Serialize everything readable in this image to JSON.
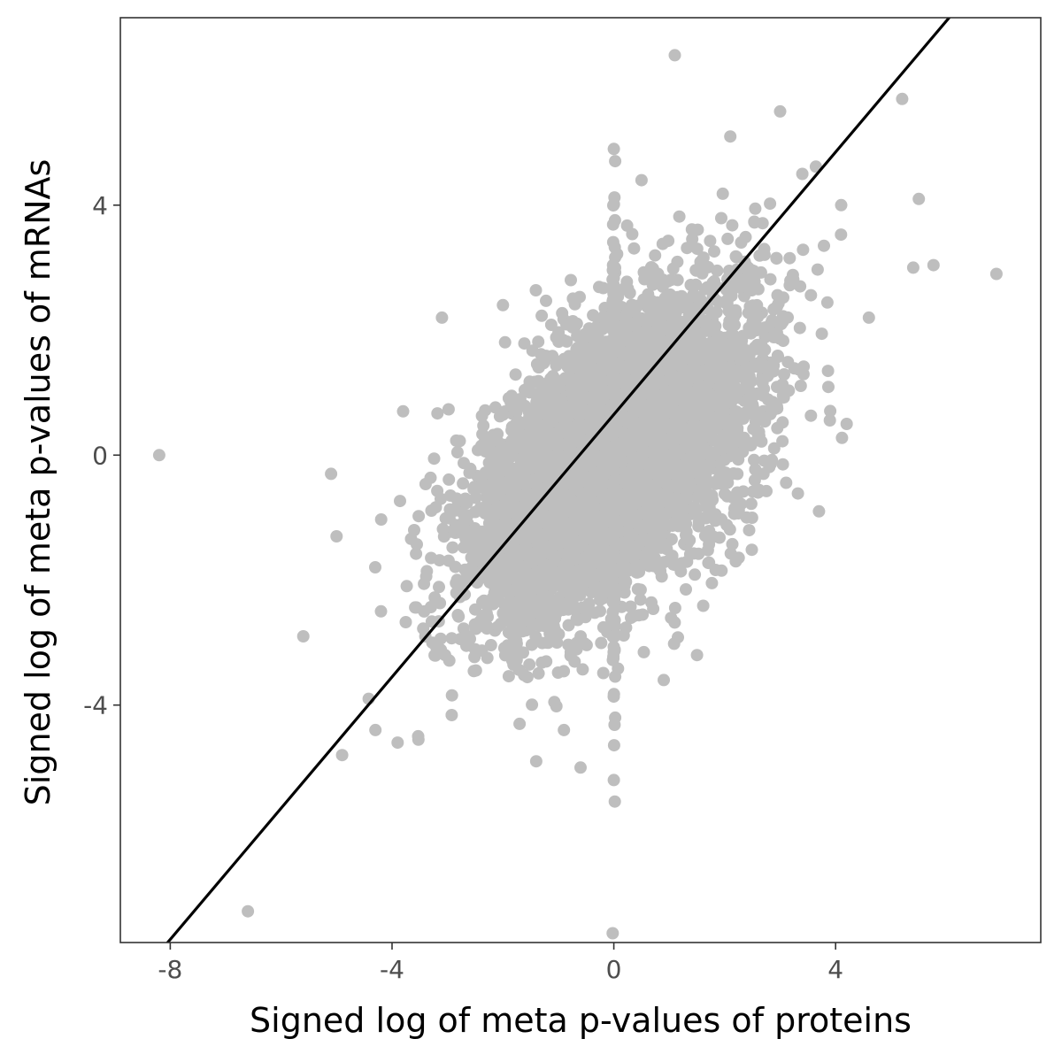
{
  "chart_data": {
    "type": "scatter",
    "title": "",
    "xlabel": "Signed log of meta p-values of proteins",
    "ylabel": "Signed log of meta p-values of mRNAs",
    "xlim": [
      -8.9,
      7.7
    ],
    "ylim": [
      -7.8,
      7.0
    ],
    "x_ticks": [
      -8,
      -4,
      0,
      4
    ],
    "x_tick_labels": [
      "-8",
      "-4",
      "0",
      "4"
    ],
    "y_ticks": [
      -4,
      0,
      4
    ],
    "y_tick_labels": [
      "-4",
      "0",
      "4"
    ],
    "grid": false,
    "legend": "none",
    "colors": {
      "points": "#bebebe",
      "line": "#000000",
      "frame": "#333333"
    },
    "reference_line": {
      "slope": 1.05,
      "intercept": 0.65
    },
    "outliers": [
      {
        "x": -8.2,
        "y": 0.0
      },
      {
        "x": -6.6,
        "y": -7.3
      },
      {
        "x": -5.6,
        "y": -2.9
      },
      {
        "x": -5.1,
        "y": -0.3
      },
      {
        "x": -5.0,
        "y": -1.3
      },
      {
        "x": -4.9,
        "y": -4.8
      },
      {
        "x": -4.3,
        "y": -4.4
      },
      {
        "x": -4.2,
        "y": -2.5
      },
      {
        "x": -3.9,
        "y": -4.6
      },
      {
        "x": -3.8,
        "y": 0.7
      },
      {
        "x": -3.6,
        "y": -1.2
      },
      {
        "x": -3.4,
        "y": -2.9
      },
      {
        "x": -3.1,
        "y": 2.2
      },
      {
        "x": -2.0,
        "y": 2.4
      },
      {
        "x": -1.7,
        "y": -4.3
      },
      {
        "x": -1.4,
        "y": -4.9
      },
      {
        "x": -0.6,
        "y": -5.0
      },
      {
        "x": 0.0,
        "y": -5.2
      },
      {
        "x": 0.0,
        "y": 4.9
      },
      {
        "x": 0.5,
        "y": 4.4
      },
      {
        "x": 1.1,
        "y": 6.4
      },
      {
        "x": 2.1,
        "y": 5.1
      },
      {
        "x": 3.0,
        "y": 5.5
      },
      {
        "x": 3.4,
        "y": 4.5
      },
      {
        "x": 4.1,
        "y": 4.0
      },
      {
        "x": 4.2,
        "y": 0.5
      },
      {
        "x": 4.6,
        "y": 2.2
      },
      {
        "x": 5.2,
        "y": 5.7
      },
      {
        "x": 5.4,
        "y": 3.0
      },
      {
        "x": 5.5,
        "y": 4.1
      },
      {
        "x": 6.9,
        "y": 2.9
      },
      {
        "x": 3.7,
        "y": -0.9
      },
      {
        "x": 2.7,
        "y": -0.3
      },
      {
        "x": 2.6,
        "y": -0.6
      },
      {
        "x": 2.2,
        "y": -1.7
      },
      {
        "x": 1.5,
        "y": -3.2
      },
      {
        "x": 0.9,
        "y": -3.6
      },
      {
        "x": -0.9,
        "y": -4.4
      }
    ],
    "cloud": {
      "n_points": 6000,
      "x_sd": 1.25,
      "y_sd": 1.25,
      "correlation": 0.55,
      "n_vertical_band": 170,
      "seed": 7
    }
  }
}
